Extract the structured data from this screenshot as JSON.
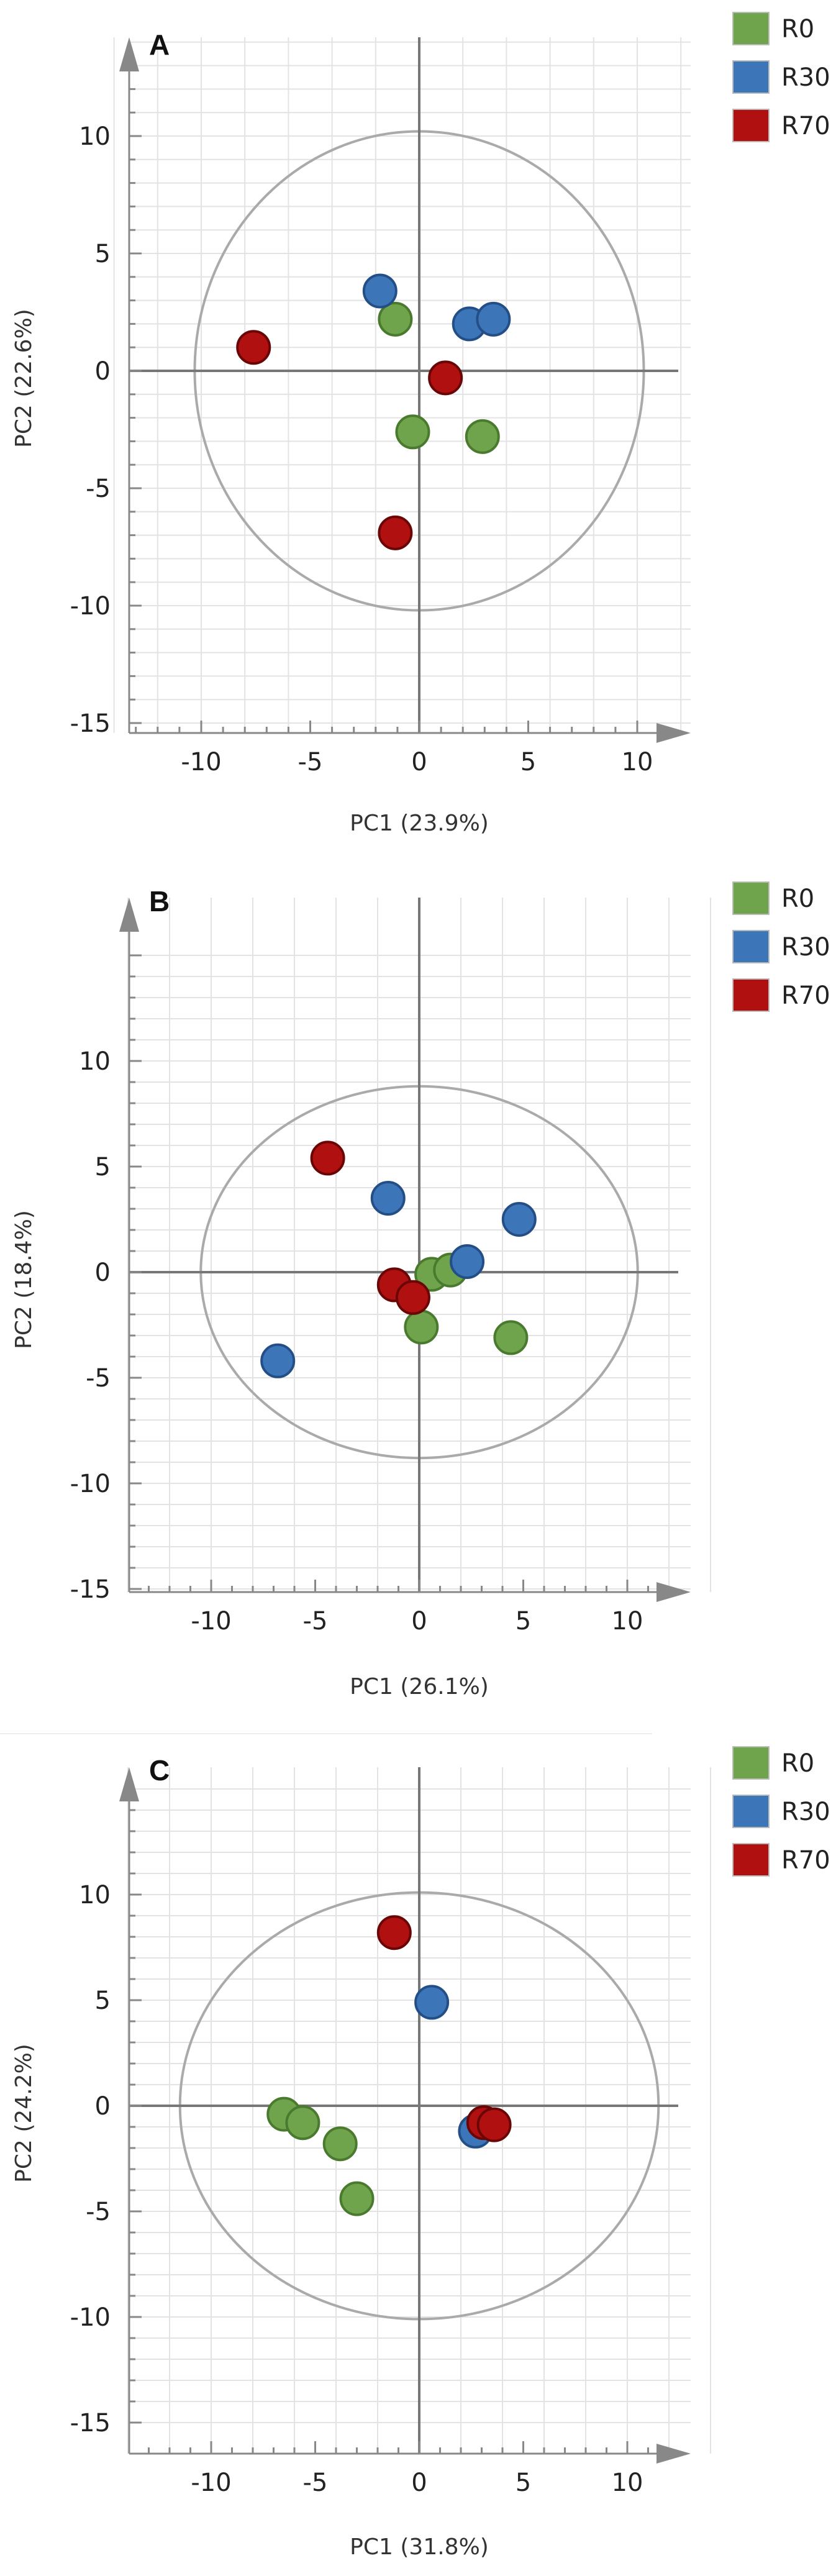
{
  "chart_data": [
    {
      "type": "scatter",
      "panel_label": "A",
      "xlabel": "PC1 (23.9%)",
      "ylabel": "PC2 (22.6%)",
      "xlim": [
        -14,
        12
      ],
      "ylim": [
        -15,
        15
      ],
      "xticks": [
        -10,
        -5,
        0,
        5,
        10
      ],
      "yticks": [
        10,
        5,
        0,
        -5,
        -10,
        -15
      ],
      "ellipse": {
        "rx": 10.3,
        "ry": 10.2
      },
      "grid": true,
      "legend_position": "top-right",
      "series": [
        {
          "name": "R0",
          "color": "#6fa34c",
          "points": [
            [
              -1.1,
              2.2
            ],
            [
              -0.3,
              -2.6
            ],
            [
              2.9,
              -2.8
            ]
          ]
        },
        {
          "name": "R30",
          "color": "#3d76b8",
          "points": [
            [
              -1.8,
              3.4
            ],
            [
              2.3,
              2.0
            ],
            [
              3.4,
              2.2
            ]
          ]
        },
        {
          "name": "R70",
          "color": "#b01010",
          "points": [
            [
              -7.6,
              1.0
            ],
            [
              1.2,
              -0.3
            ],
            [
              -1.1,
              -6.9
            ]
          ]
        }
      ]
    },
    {
      "type": "scatter",
      "panel_label": "B",
      "xlabel": "PC1 (26.1%)",
      "ylabel": "PC2 (18.4%)",
      "xlim": [
        -14,
        14
      ],
      "ylim": [
        -15,
        15
      ],
      "xticks": [
        -10,
        -5,
        0,
        5,
        10
      ],
      "yticks": [
        10,
        5,
        0,
        -5,
        -10,
        -15
      ],
      "ellipse": {
        "rx": 10.5,
        "ry": 8.8
      },
      "grid": true,
      "legend_position": "top-right",
      "series": [
        {
          "name": "R0",
          "color": "#6fa34c",
          "points": [
            [
              0.6,
              -0.1
            ],
            [
              1.5,
              0.1
            ],
            [
              0.1,
              -2.6
            ],
            [
              4.4,
              -3.1
            ]
          ]
        },
        {
          "name": "R30",
          "color": "#3d76b8",
          "points": [
            [
              -1.5,
              3.5
            ],
            [
              4.8,
              2.5
            ],
            [
              2.3,
              0.5
            ],
            [
              -6.8,
              -4.2
            ]
          ]
        },
        {
          "name": "R70",
          "color": "#b01010",
          "points": [
            [
              -4.4,
              5.4
            ],
            [
              -1.2,
              -0.6
            ],
            [
              -0.3,
              -1.2
            ]
          ]
        }
      ]
    },
    {
      "type": "scatter",
      "panel_label": "C",
      "xlabel": "PC1 (31.8%)",
      "ylabel": "PC2 (24.2%)",
      "xlim": [
        -14,
        14
      ],
      "ylim": [
        -15,
        15
      ],
      "xticks": [
        -10,
        -5,
        0,
        5,
        10
      ],
      "yticks": [
        10,
        5,
        0,
        -5,
        -10,
        -15
      ],
      "ellipse": {
        "rx": 11.5,
        "ry": 10.1
      },
      "grid": true,
      "legend_position": "top-right",
      "series": [
        {
          "name": "R0",
          "color": "#6fa34c",
          "points": [
            [
              -6.5,
              -0.4
            ],
            [
              -5.6,
              -0.8
            ],
            [
              -3.8,
              -1.8
            ],
            [
              -3.0,
              -4.4
            ]
          ]
        },
        {
          "name": "R30",
          "color": "#3d76b8",
          "points": [
            [
              0.6,
              4.9
            ],
            [
              2.7,
              -1.2
            ]
          ]
        },
        {
          "name": "R70",
          "color": "#b01010",
          "points": [
            [
              -1.2,
              8.2
            ],
            [
              3.1,
              -0.8
            ],
            [
              3.6,
              -0.9
            ]
          ]
        }
      ]
    }
  ]
}
